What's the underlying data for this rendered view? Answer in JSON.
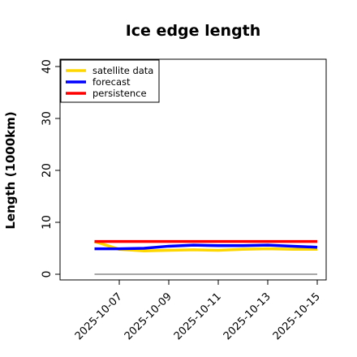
{
  "chart_data": {
    "type": "line",
    "title": "Ice edge length",
    "ylabel": "Length (1000km)",
    "xlabel": "",
    "ylim": [
      0,
      40
    ],
    "yticks": [
      0,
      10,
      20,
      30,
      40
    ],
    "x": [
      "2025-10-06",
      "2025-10-07",
      "2025-10-08",
      "2025-10-09",
      "2025-10-10",
      "2025-10-11",
      "2025-10-12",
      "2025-10-13",
      "2025-10-14",
      "2025-10-15"
    ],
    "xticks": [
      {
        "date": "2025-10-07",
        "label": "2025-10-07",
        "color": "#228B22"
      },
      {
        "date": "2025-10-09",
        "label": "2025-10-09",
        "color": "#000000"
      },
      {
        "date": "2025-10-11",
        "label": "2025-10-11",
        "color": "#000000"
      },
      {
        "date": "2025-10-13",
        "label": "2025-10-13",
        "color": "#000000"
      },
      {
        "date": "2025-10-15",
        "label": "2025-10-15",
        "color": "#000000"
      }
    ],
    "series": [
      {
        "name": "satellite data",
        "color": "#FFD700",
        "values": [
          6.3,
          4.8,
          4.5,
          4.6,
          4.7,
          4.6,
          4.8,
          4.9,
          4.8,
          4.8
        ]
      },
      {
        "name": "forecast",
        "color": "#0000FF",
        "values": [
          4.9,
          4.9,
          5.0,
          5.4,
          5.6,
          5.5,
          5.5,
          5.6,
          5.4,
          5.2
        ]
      },
      {
        "name": "persistence",
        "color": "#FF0000",
        "values": [
          6.3,
          6.3,
          6.3,
          6.3,
          6.3,
          6.3,
          6.3,
          6.3,
          6.3,
          6.3
        ]
      }
    ],
    "baseline": {
      "value": 0,
      "color": "#888888"
    },
    "legend_position": "top-left",
    "grid": false
  }
}
